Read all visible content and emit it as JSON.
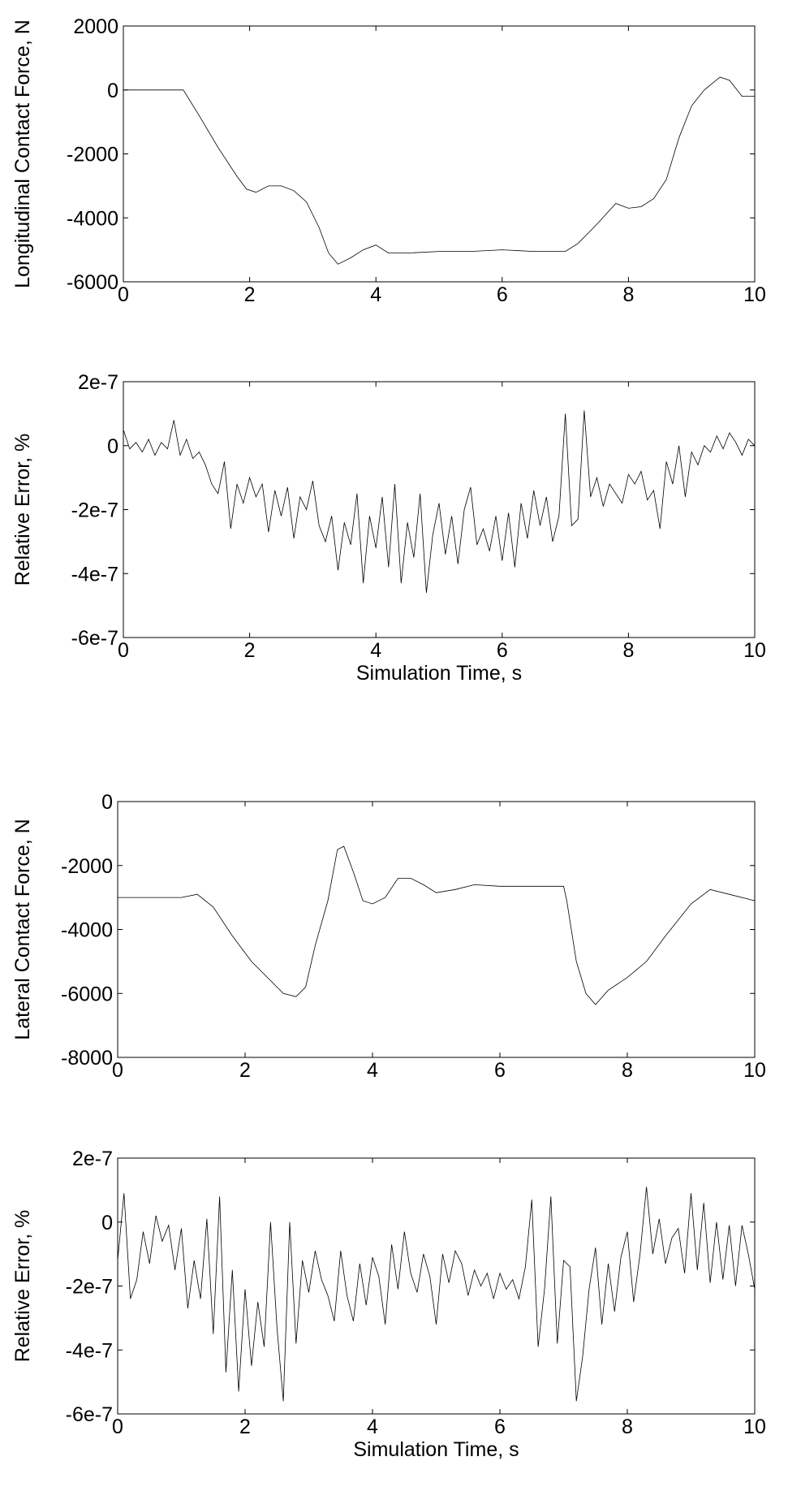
{
  "chart_data": [
    {
      "type": "line",
      "xlabel": "",
      "ylabel": "Longitudinal Contact Force, N",
      "xlim": [
        0,
        10
      ],
      "ylim": [
        -6000,
        2000
      ],
      "xticks": [
        0,
        2,
        4,
        6,
        8,
        10
      ],
      "yticks": [
        2000,
        0,
        -2000,
        -4000,
        -6000
      ],
      "xtick_labels": [
        "0",
        "2",
        "4",
        "6",
        "8",
        "10"
      ],
      "ytick_labels": [
        "2000",
        "0",
        "-2000",
        "-4000",
        "-6000"
      ],
      "grid": false,
      "series": [
        {
          "color": "#000000",
          "x": [
            0,
            0.5,
            0.95,
            1.2,
            1.5,
            1.8,
            1.95,
            2.1,
            2.3,
            2.5,
            2.7,
            2.9,
            3.1,
            3.25,
            3.4,
            3.6,
            3.8,
            4.0,
            4.2,
            4.5,
            5.0,
            5.5,
            6.0,
            6.5,
            7.0,
            7.2,
            7.5,
            7.8,
            8.0,
            8.2,
            8.4,
            8.6,
            8.8,
            9.0,
            9.2,
            9.45,
            9.6,
            9.8,
            10.0
          ],
          "y": [
            0,
            0,
            0,
            -800,
            -1800,
            -2700,
            -3100,
            -3200,
            -3000,
            -3000,
            -3150,
            -3500,
            -4300,
            -5100,
            -5450,
            -5250,
            -5000,
            -4850,
            -5100,
            -5100,
            -5050,
            -5050,
            -5000,
            -5050,
            -5050,
            -4800,
            -4200,
            -3550,
            -3700,
            -3650,
            -3400,
            -2800,
            -1500,
            -500,
            0,
            400,
            300,
            -200,
            -200
          ]
        }
      ]
    },
    {
      "type": "line",
      "xlabel": "Simulation Time, s",
      "ylabel": "Relative Error, %",
      "xlim": [
        0,
        10
      ],
      "ylim": [
        -6e-07,
        2e-07
      ],
      "xticks": [
        0,
        2,
        4,
        6,
        8,
        10
      ],
      "yticks": [
        2e-07,
        0,
        -2e-07,
        -4e-07,
        -6e-07
      ],
      "xtick_labels": [
        "0",
        "2",
        "4",
        "6",
        "8",
        "10"
      ],
      "ytick_labels": [
        "2e-7",
        "0",
        "-2e-7",
        "-4e-7",
        "-6e-7"
      ],
      "grid": false,
      "series": [
        {
          "color": "#000000",
          "x": [
            0,
            0.1,
            0.2,
            0.3,
            0.4,
            0.5,
            0.6,
            0.7,
            0.8,
            0.9,
            1.0,
            1.1,
            1.2,
            1.3,
            1.4,
            1.5,
            1.6,
            1.7,
            1.8,
            1.9,
            2.0,
            2.1,
            2.2,
            2.3,
            2.4,
            2.5,
            2.6,
            2.7,
            2.8,
            2.9,
            3.0,
            3.1,
            3.2,
            3.3,
            3.4,
            3.5,
            3.6,
            3.7,
            3.8,
            3.9,
            4.0,
            4.1,
            4.2,
            4.3,
            4.4,
            4.5,
            4.6,
            4.7,
            4.8,
            4.9,
            5.0,
            5.1,
            5.2,
            5.3,
            5.4,
            5.5,
            5.6,
            5.7,
            5.8,
            5.9,
            6.0,
            6.1,
            6.2,
            6.3,
            6.4,
            6.5,
            6.6,
            6.7,
            6.8,
            6.9,
            7.0,
            7.1,
            7.2,
            7.3,
            7.4,
            7.5,
            7.6,
            7.7,
            7.8,
            7.9,
            8.0,
            8.1,
            8.2,
            8.3,
            8.4,
            8.5,
            8.6,
            8.7,
            8.8,
            8.9,
            9.0,
            9.1,
            9.2,
            9.3,
            9.4,
            9.5,
            9.6,
            9.7,
            9.8,
            9.9,
            10.0
          ],
          "y": [
            5e-08,
            -1e-08,
            1e-08,
            -2e-08,
            2e-08,
            -3e-08,
            1e-08,
            -1e-08,
            8e-08,
            -3e-08,
            2e-08,
            -4e-08,
            -2e-08,
            -6e-08,
            -1.2e-07,
            -1.5e-07,
            -5e-08,
            -2.6e-07,
            -1.2e-07,
            -1.8e-07,
            -1e-07,
            -1.6e-07,
            -1.2e-07,
            -2.7e-07,
            -1.4e-07,
            -2.2e-07,
            -1.3e-07,
            -2.9e-07,
            -1.6e-07,
            -2e-07,
            -1.1e-07,
            -2.5e-07,
            -3e-07,
            -2.2e-07,
            -3.9e-07,
            -2.4e-07,
            -3.1e-07,
            -1.5e-07,
            -4.3e-07,
            -2.2e-07,
            -3.2e-07,
            -1.6e-07,
            -3.8e-07,
            -1.2e-07,
            -4.3e-07,
            -2.4e-07,
            -3.5e-07,
            -1.5e-07,
            -4.6e-07,
            -2.8e-07,
            -1.8e-07,
            -3.4e-07,
            -2.2e-07,
            -3.7e-07,
            -2e-07,
            -1.3e-07,
            -3.1e-07,
            -2.6e-07,
            -3.3e-07,
            -2.2e-07,
            -3.6e-07,
            -2.1e-07,
            -3.8e-07,
            -1.8e-07,
            -2.9e-07,
            -1.4e-07,
            -2.5e-07,
            -1.6e-07,
            -3e-07,
            -2.2e-07,
            1e-07,
            -2.5e-07,
            -2.3e-07,
            1.1e-07,
            -1.6e-07,
            -1e-07,
            -1.9e-07,
            -1.2e-07,
            -1.5e-07,
            -1.8e-07,
            -9e-08,
            -1.2e-07,
            -8e-08,
            -1.7e-07,
            -1.4e-07,
            -2.6e-07,
            -5e-08,
            -1.2e-07,
            0,
            -1.6e-07,
            -2e-08,
            -6e-08,
            0,
            -2e-08,
            3e-08,
            -1e-08,
            4e-08,
            1e-08,
            -3e-08,
            2e-08,
            0
          ]
        }
      ]
    },
    {
      "type": "line",
      "xlabel": "",
      "ylabel": "Lateral Contact Force, N",
      "xlim": [
        0,
        10
      ],
      "ylim": [
        -8000,
        0
      ],
      "xticks": [
        0,
        2,
        4,
        6,
        8,
        10
      ],
      "yticks": [
        0,
        -2000,
        -4000,
        -6000,
        -8000
      ],
      "xtick_labels": [
        "0",
        "2",
        "4",
        "6",
        "8",
        "10"
      ],
      "ytick_labels": [
        "0",
        "-2000",
        "-4000",
        "-6000",
        "-8000"
      ],
      "grid": false,
      "series": [
        {
          "color": "#000000",
          "x": [
            0,
            0.5,
            1.0,
            1.25,
            1.5,
            1.8,
            2.1,
            2.4,
            2.6,
            2.8,
            2.95,
            3.1,
            3.3,
            3.45,
            3.55,
            3.7,
            3.85,
            4.0,
            4.2,
            4.4,
            4.6,
            4.8,
            5.0,
            5.3,
            5.6,
            6.0,
            6.5,
            7.0,
            7.05,
            7.2,
            7.35,
            7.5,
            7.7,
            8.0,
            8.3,
            8.6,
            9.0,
            9.3,
            9.6,
            10.0
          ],
          "y": [
            -3000,
            -3000,
            -3000,
            -2900,
            -3300,
            -4200,
            -5000,
            -5600,
            -6000,
            -6100,
            -5800,
            -4500,
            -3100,
            -1500,
            -1400,
            -2200,
            -3100,
            -3200,
            -3000,
            -2400,
            -2400,
            -2600,
            -2850,
            -2750,
            -2600,
            -2650,
            -2650,
            -2650,
            -3100,
            -5000,
            -6000,
            -6350,
            -5900,
            -5500,
            -5000,
            -4200,
            -3200,
            -2750,
            -2900,
            -3100
          ]
        }
      ]
    },
    {
      "type": "line",
      "xlabel": "Simulation Time, s",
      "ylabel": "Relative Error, %",
      "xlim": [
        0,
        10
      ],
      "ylim": [
        -6e-07,
        2e-07
      ],
      "xticks": [
        0,
        2,
        4,
        6,
        8,
        10
      ],
      "yticks": [
        2e-07,
        0,
        -2e-07,
        -4e-07,
        -6e-07
      ],
      "xtick_labels": [
        "0",
        "2",
        "4",
        "6",
        "8",
        "10"
      ],
      "ytick_labels": [
        "2e-7",
        "0",
        "-2e-7",
        "-4e-7",
        "-6e-7"
      ],
      "grid": false,
      "series": [
        {
          "color": "#000000",
          "x": [
            0,
            0.1,
            0.2,
            0.3,
            0.4,
            0.5,
            0.6,
            0.7,
            0.8,
            0.9,
            1.0,
            1.1,
            1.2,
            1.3,
            1.4,
            1.5,
            1.6,
            1.7,
            1.8,
            1.9,
            2.0,
            2.1,
            2.2,
            2.3,
            2.4,
            2.5,
            2.6,
            2.7,
            2.8,
            2.9,
            3.0,
            3.1,
            3.2,
            3.3,
            3.4,
            3.5,
            3.6,
            3.7,
            3.8,
            3.9,
            4.0,
            4.1,
            4.2,
            4.3,
            4.4,
            4.5,
            4.6,
            4.7,
            4.8,
            4.9,
            5.0,
            5.1,
            5.2,
            5.3,
            5.4,
            5.5,
            5.6,
            5.7,
            5.8,
            5.9,
            6.0,
            6.1,
            6.2,
            6.3,
            6.4,
            6.5,
            6.6,
            6.7,
            6.8,
            6.9,
            7.0,
            7.1,
            7.2,
            7.3,
            7.4,
            7.5,
            7.6,
            7.7,
            7.8,
            7.9,
            8.0,
            8.1,
            8.2,
            8.3,
            8.4,
            8.5,
            8.6,
            8.7,
            8.8,
            8.9,
            9.0,
            9.1,
            9.2,
            9.3,
            9.4,
            9.5,
            9.6,
            9.7,
            9.8,
            9.9,
            10.0
          ],
          "y": [
            -1.2e-07,
            9e-08,
            -2.4e-07,
            -1.8e-07,
            -3e-08,
            -1.3e-07,
            2e-08,
            -6e-08,
            -1e-08,
            -1.5e-07,
            -2e-08,
            -2.7e-07,
            -1.2e-07,
            -2.4e-07,
            1e-08,
            -3.5e-07,
            8e-08,
            -4.7e-07,
            -1.5e-07,
            -5.3e-07,
            -2.1e-07,
            -4.5e-07,
            -2.5e-07,
            -3.9e-07,
            0,
            -3.3e-07,
            -5.6e-07,
            0,
            -3.8e-07,
            -1.2e-07,
            -2.2e-07,
            -9e-08,
            -1.8e-07,
            -2.3e-07,
            -3.1e-07,
            -9e-08,
            -2.3e-07,
            -3.1e-07,
            -1.3e-07,
            -2.6e-07,
            -1.1e-07,
            -1.7e-07,
            -3.2e-07,
            -7e-08,
            -2.1e-07,
            -3e-08,
            -1.6e-07,
            -2.2e-07,
            -1e-07,
            -1.7e-07,
            -3.2e-07,
            -1e-07,
            -1.9e-07,
            -9e-08,
            -1.3e-07,
            -2.3e-07,
            -1.5e-07,
            -2e-07,
            -1.6e-07,
            -2.4e-07,
            -1.6e-07,
            -2.1e-07,
            -1.8e-07,
            -2.4e-07,
            -1.4e-07,
            7e-08,
            -3.9e-07,
            -2.1e-07,
            8e-08,
            -3.8e-07,
            -1.2e-07,
            -1.4e-07,
            -5.6e-07,
            -4.2e-07,
            -2.1e-07,
            -8e-08,
            -3.2e-07,
            -1.3e-07,
            -2.8e-07,
            -1.1e-07,
            -3e-08,
            -2.5e-07,
            -1e-07,
            1.1e-07,
            -1e-07,
            1e-08,
            -1.3e-07,
            -5e-08,
            -2e-08,
            -1.6e-07,
            9e-08,
            -1.5e-07,
            6e-08,
            -1.9e-07,
            0,
            -1.8e-07,
            -1e-08,
            -2e-07,
            -1e-08,
            -1e-07,
            -2.1e-07
          ]
        }
      ]
    }
  ]
}
